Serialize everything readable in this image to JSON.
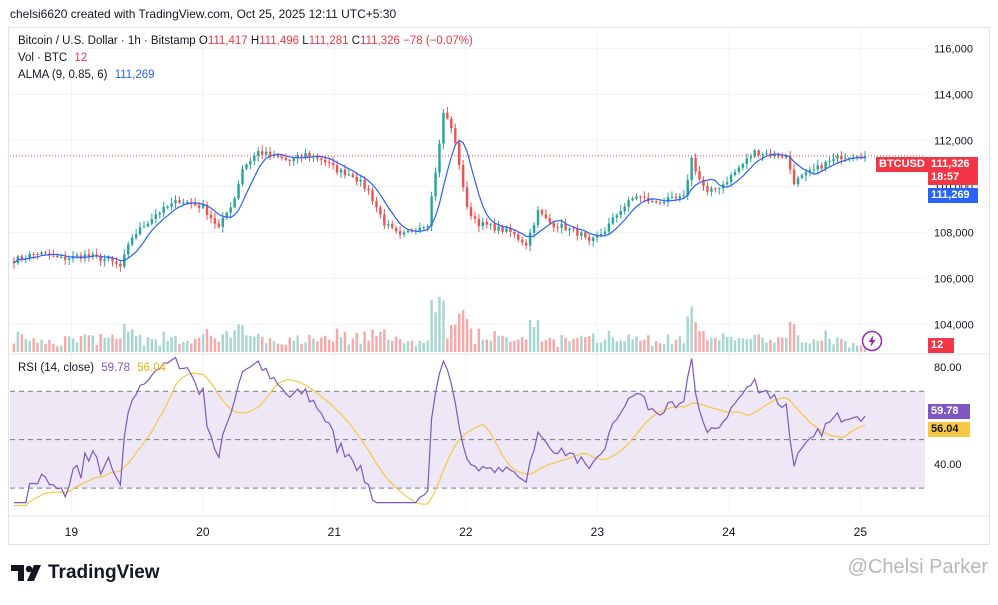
{
  "credit": "chelsi6620 created with TradingView.com, Oct 25, 2025 12:11 UTC+5:30",
  "legend": {
    "symbol": "Bitcoin / U.S. Dollar · 1h · Bitstamp",
    "open_label": "O",
    "open": "111,417",
    "high_label": "H",
    "high": "111,496",
    "low_label": "L",
    "low": "111,281",
    "close_label": "C",
    "close": "111,326",
    "change": "−78 (−0.07%)",
    "vol_label": "Vol · BTC",
    "vol_value": "12",
    "alma_label": "ALMA (9, 0.85, 6)",
    "alma_value": "111,269",
    "rsi_label": "RSI (14, close)",
    "rsi_value": "59.78",
    "rsi_ma_value": "56.04"
  },
  "tags": {
    "symbol": "BTCUSD",
    "price": "111,326",
    "countdown": "18:57",
    "alma": "111,269",
    "volume": "12",
    "rsi": "59.78",
    "rsi_ma": "56.04"
  },
  "colors": {
    "up": "#26a69a",
    "down": "#ef5350",
    "alma": "#2962ff",
    "rsi": "#7e57c2",
    "rsi_ma": "#f7c844",
    "rsi_band": "#ede7f6",
    "price_line": "#f23645"
  },
  "footer": {
    "brand": "TradingView",
    "watermark": "@Chelsi Parker"
  },
  "chart_data": {
    "type": "candlestick",
    "title": "Bitcoin / U.S. Dollar · 1h · Bitstamp",
    "price_axis": {
      "min": 102800,
      "max": 116800,
      "ticks": [
        104000,
        106000,
        108000,
        110000,
        112000,
        114000,
        116000
      ],
      "tick_labels": [
        "104,000",
        "106,000",
        "108,000",
        "110,000",
        "112,000",
        "114,000",
        "116,000"
      ]
    },
    "x_axis": {
      "labels": [
        "19",
        "20",
        "21",
        "22",
        "23",
        "24",
        "25"
      ],
      "start_hour": 13.3,
      "hours_visible": 167
    },
    "last_price": 111326,
    "close_path": [
      [
        0,
        106800
      ],
      [
        6,
        107100
      ],
      [
        12,
        106850
      ],
      [
        18,
        107000
      ],
      [
        24,
        106800
      ],
      [
        27,
        106500
      ],
      [
        30,
        107800
      ],
      [
        36,
        108800
      ],
      [
        42,
        109400
      ],
      [
        48,
        109100
      ],
      [
        52,
        108200
      ],
      [
        56,
        109500
      ],
      [
        58,
        110800
      ],
      [
        62,
        111500
      ],
      [
        66,
        111300
      ],
      [
        70,
        111100
      ],
      [
        74,
        111400
      ],
      [
        78,
        111200
      ],
      [
        82,
        110700
      ],
      [
        86,
        110500
      ],
      [
        90,
        109800
      ],
      [
        94,
        108400
      ],
      [
        98,
        107800
      ],
      [
        102,
        108200
      ],
      [
        105,
        108400
      ],
      [
        108,
        111800
      ],
      [
        109,
        113200
      ],
      [
        111,
        112600
      ],
      [
        113,
        111000
      ],
      [
        115,
        109000
      ],
      [
        118,
        108400
      ],
      [
        122,
        108200
      ],
      [
        126,
        108000
      ],
      [
        130,
        107500
      ],
      [
        133,
        108900
      ],
      [
        136,
        108400
      ],
      [
        140,
        108200
      ],
      [
        144,
        107900
      ],
      [
        146,
        107500
      ],
      [
        150,
        108100
      ],
      [
        154,
        109000
      ],
      [
        158,
        109600
      ],
      [
        162,
        109300
      ],
      [
        166,
        109400
      ],
      [
        170,
        109500
      ],
      [
        172,
        111200
      ],
      [
        174,
        110300
      ],
      [
        176,
        109700
      ],
      [
        180,
        110100
      ],
      [
        184,
        110800
      ],
      [
        188,
        111500
      ],
      [
        192,
        111400
      ],
      [
        196,
        111300
      ],
      [
        198,
        110200
      ],
      [
        202,
        110600
      ],
      [
        206,
        111000
      ],
      [
        210,
        111300
      ],
      [
        214,
        111400
      ],
      [
        216,
        111326
      ]
    ],
    "key_levels": {
      "high": 114000,
      "low": 106200
    },
    "volume": {
      "unit": "BTC",
      "last": 12
    },
    "rsi": {
      "length": 14,
      "source": "close",
      "last": 59.78,
      "ma_last": 56.04,
      "upper": 70,
      "middle": 50,
      "lower": 30,
      "axis_labels": [
        "80.00",
        "40.00"
      ]
    }
  }
}
